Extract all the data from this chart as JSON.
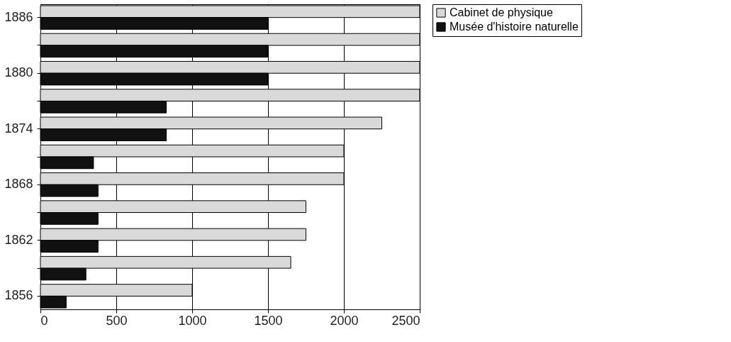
{
  "chart_data": {
    "type": "bar",
    "orientation": "horizontal",
    "categories": [
      "1886",
      null,
      "1880",
      null,
      "1874",
      null,
      "1868",
      null,
      "1862",
      null,
      "1856"
    ],
    "series": [
      {
        "name": "Cabinet de physique",
        "color": "#d9d9d9",
        "values": [
          2500,
          2500,
          2500,
          2500,
          2250,
          2000,
          2000,
          1750,
          1750,
          1650,
          1000
        ]
      },
      {
        "name": "Musée d'histoire naturelle",
        "color": "#111111",
        "values": [
          1500,
          1500,
          1500,
          830,
          830,
          350,
          380,
          380,
          380,
          300,
          170
        ]
      }
    ],
    "xlim": [
      0,
      2500
    ],
    "xticks": [
      0,
      500,
      1000,
      1500,
      2000,
      2500
    ],
    "grid": "x",
    "legend": "right"
  }
}
